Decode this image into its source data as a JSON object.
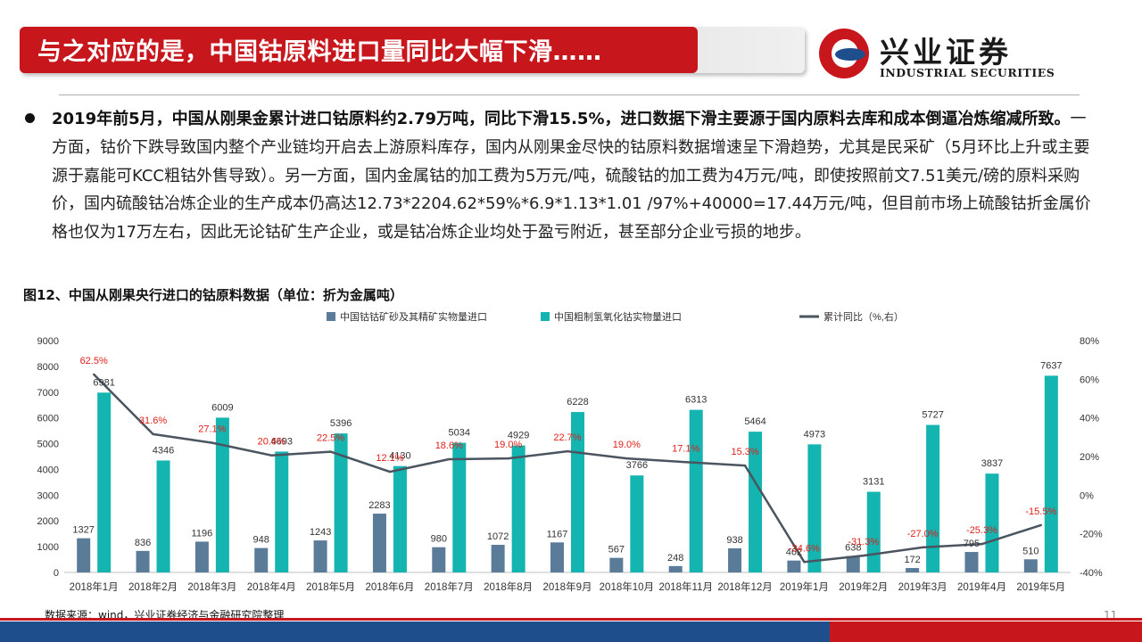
{
  "header": {
    "title": "与之对应的是，中国钴原料进口量同比大幅下滑……",
    "logo_cn": "兴业证券",
    "logo_en": "INDUSTRIAL SECURITIES"
  },
  "body": {
    "bold_text": "2019年前5月，中国从刚果金累计进口钴原料约2.79万吨，同比下滑15.5%，进口数据下滑主要源于国内原料去库和成本倒逼冶炼缩减所致。",
    "normal_text": "一方面，钴价下跌导致国内整个产业链均开启去上游原料库存，国内从刚果金尽快的钴原料数据增速呈下滑趋势，尤其是民采矿（5月环比上升或主要源于嘉能可KCC粗钴外售导致）。另一方面，国内金属钴的加工费为5万元/吨，硫酸钴的加工费为4万元/吨，即使按照前文7.51美元/磅的原料采购价，国内硫酸钴冶炼企业的生产成本仍高达12.73*2204.62*59%*6.9*1.13*1.01 /97%+40000=17.44万元/吨，但目前市场上硫酸钴折金属价格也仅为17万左右，因此无论钴矿生产企业，或是钴冶炼企业均处于盈亏附近，甚至部分企业亏损的地步。"
  },
  "figure": {
    "title": "图12、中国从刚果央行进口的钴原料数据（单位：折为金属吨）"
  },
  "source": "数据来源：wind，兴业证券经济与金融研究院整理",
  "page_number": "11",
  "colors": {
    "brand_red": "#c8161d",
    "brand_blue": "#1f4e8c",
    "series_ore": "#5b7c99",
    "series_hydroxide": "#14b4b0",
    "series_yoy": "#4a5560",
    "yoy_label": "#e0201a"
  },
  "chart_data": {
    "type": "bar",
    "categories": [
      "2018年1月",
      "2018年2月",
      "2018年3月",
      "2018年4月",
      "2018年5月",
      "2018年6月",
      "2018年7月",
      "2018年8月",
      "2018年9月",
      "2018年10月",
      "2018年11月",
      "2018年12月",
      "2019年1月",
      "2019年2月",
      "2019年3月",
      "2019年4月",
      "2019年5月"
    ],
    "series": [
      {
        "name": "中国钴钴矿砂及其精矿实物量进口",
        "type": "bar",
        "axis": "left",
        "values": [
          1327,
          836,
          1196,
          948,
          1243,
          2283,
          980,
          1072,
          1167,
          567,
          248,
          938,
          462,
          638,
          172,
          795,
          510
        ]
      },
      {
        "name": "中国粗制氢氧化钴实物量进口",
        "type": "bar",
        "axis": "left",
        "values": [
          6981,
          4346,
          6009,
          4693,
          5396,
          4130,
          5034,
          4929,
          6228,
          3766,
          6313,
          5464,
          4973,
          3131,
          5727,
          3837,
          7637
        ]
      },
      {
        "name": "累计同比（%,右）",
        "type": "line",
        "axis": "right",
        "values": [
          62.5,
          31.6,
          27.1,
          20.6,
          22.5,
          12.1,
          18.6,
          19.0,
          22.7,
          19.0,
          17.1,
          15.3,
          -34.6,
          -31.3,
          -27.0,
          -25.3,
          -15.5
        ],
        "labels": [
          "62.5%",
          "31.6%",
          "27.1%",
          "20.6%",
          "22.5%",
          "12.1%",
          "18.6%",
          "19.0%",
          "22.7%",
          "19.0%",
          "17.1%",
          "15.3%",
          "-34.6%",
          "-31.3%",
          "-27.0%",
          "-25.3%",
          "-15.5%"
        ]
      }
    ],
    "ylim_left": [
      0,
      9000
    ],
    "yticks_left": [
      "0",
      "1000",
      "2000",
      "3000",
      "4000",
      "5000",
      "6000",
      "7000",
      "8000",
      "9000"
    ],
    "ylim_right": [
      -40,
      80
    ],
    "yticks_right": [
      "-40%",
      "-20%",
      "0%",
      "20%",
      "40%",
      "60%",
      "80%"
    ],
    "legend_position": "top"
  }
}
